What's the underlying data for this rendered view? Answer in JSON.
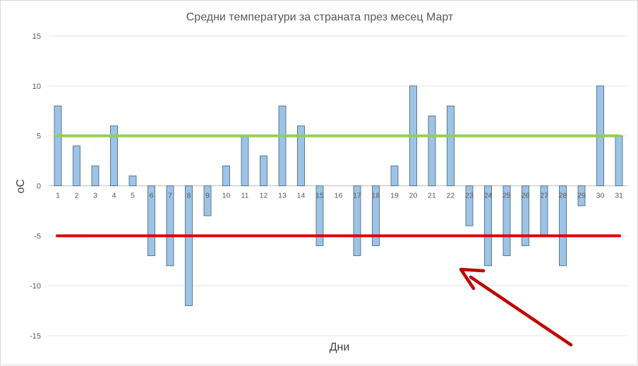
{
  "chart_data": {
    "type": "bar",
    "title": "Средни температури за страната през месец Март",
    "xlabel": "Дни",
    "ylabel": "oC",
    "ylim": [
      -15,
      15
    ],
    "yticks": [
      15,
      10,
      5,
      0,
      -5,
      -10,
      -15
    ],
    "grid": true,
    "categories": [
      "1",
      "2",
      "3",
      "4",
      "5",
      "6",
      "7",
      "8",
      "9",
      "10",
      "11",
      "12",
      "13",
      "14",
      "15",
      "16",
      "17",
      "18",
      "19",
      "20",
      "21",
      "22",
      "23",
      "24",
      "25",
      "26",
      "27",
      "28",
      "29",
      "30",
      "31"
    ],
    "values": [
      8,
      4,
      2,
      6,
      1,
      -7,
      -8,
      -12,
      -3,
      2,
      5,
      3,
      8,
      6,
      -6,
      0,
      -7,
      -6,
      2,
      10,
      7,
      8,
      -4,
      -8,
      -7,
      -6,
      -5,
      -8,
      -2,
      10,
      5
    ],
    "reference_lines": [
      {
        "value": 5,
        "color": "#92d050"
      },
      {
        "value": -5,
        "color": "#e00000"
      }
    ],
    "bar_color": "#9dc3e6",
    "bar_outline": "#41627a",
    "annotation_arrow_color": "#c00000"
  }
}
